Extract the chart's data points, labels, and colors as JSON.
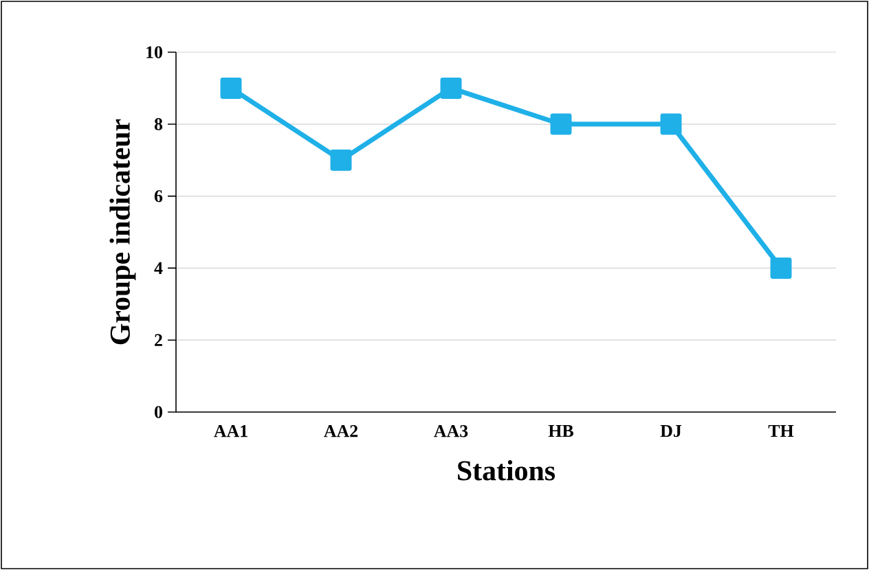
{
  "chart_data": {
    "type": "line",
    "xlabel": "Stations",
    "ylabel": "Groupe indicateur",
    "categories": [
      "AA1",
      "AA2",
      "AA3",
      "HB",
      "DJ",
      "TH"
    ],
    "values": [
      9,
      7,
      9,
      8,
      8,
      4
    ],
    "color": "#1fb0e8",
    "marker": "square",
    "ylim": [
      0,
      10
    ],
    "yticks": [
      0,
      2,
      4,
      6,
      8,
      10
    ],
    "grid": "y"
  }
}
